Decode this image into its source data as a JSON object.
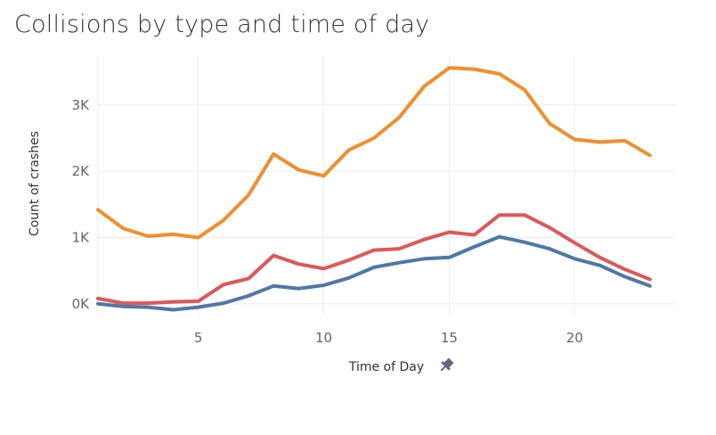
{
  "chart_data": {
    "type": "line",
    "title": "Collisions by type and time of day",
    "xlabel": "Time of Day",
    "ylabel": "Count of crashes",
    "x": [
      1,
      2,
      3,
      4,
      5,
      6,
      7,
      8,
      9,
      10,
      11,
      12,
      13,
      14,
      15,
      16,
      17,
      18,
      19,
      20,
      21,
      22,
      23
    ],
    "xlim": [
      1,
      24
    ],
    "ylim": [
      -150,
      3750
    ],
    "x_ticks": [
      5,
      10,
      15,
      20
    ],
    "x_tick_labels": [
      "5",
      "10",
      "15",
      "20"
    ],
    "y_ticks": [
      0,
      1000,
      2000,
      3000
    ],
    "y_tick_labels": [
      "0K",
      "1K",
      "2K",
      "3K"
    ],
    "grid": true,
    "legend": "none",
    "series": [
      {
        "color": "#f28e2b",
        "values": [
          1420,
          1140,
          1020,
          1050,
          1000,
          1260,
          1640,
          2260,
          2020,
          1930,
          2320,
          2500,
          2810,
          3280,
          3560,
          3540,
          3470,
          3230,
          2720,
          2480,
          2440,
          2460,
          2240
        ]
      },
      {
        "color": "#e15759",
        "values": [
          80,
          10,
          10,
          30,
          40,
          290,
          380,
          730,
          600,
          530,
          660,
          810,
          830,
          970,
          1080,
          1040,
          1340,
          1340,
          1150,
          920,
          700,
          520,
          370
        ]
      },
      {
        "color": "#4e79a7",
        "values": [
          0,
          -40,
          -50,
          -90,
          -50,
          10,
          120,
          270,
          230,
          280,
          390,
          550,
          620,
          680,
          700,
          860,
          1010,
          930,
          830,
          680,
          580,
          410,
          270
        ]
      }
    ]
  },
  "pin_icon": "pin-icon"
}
